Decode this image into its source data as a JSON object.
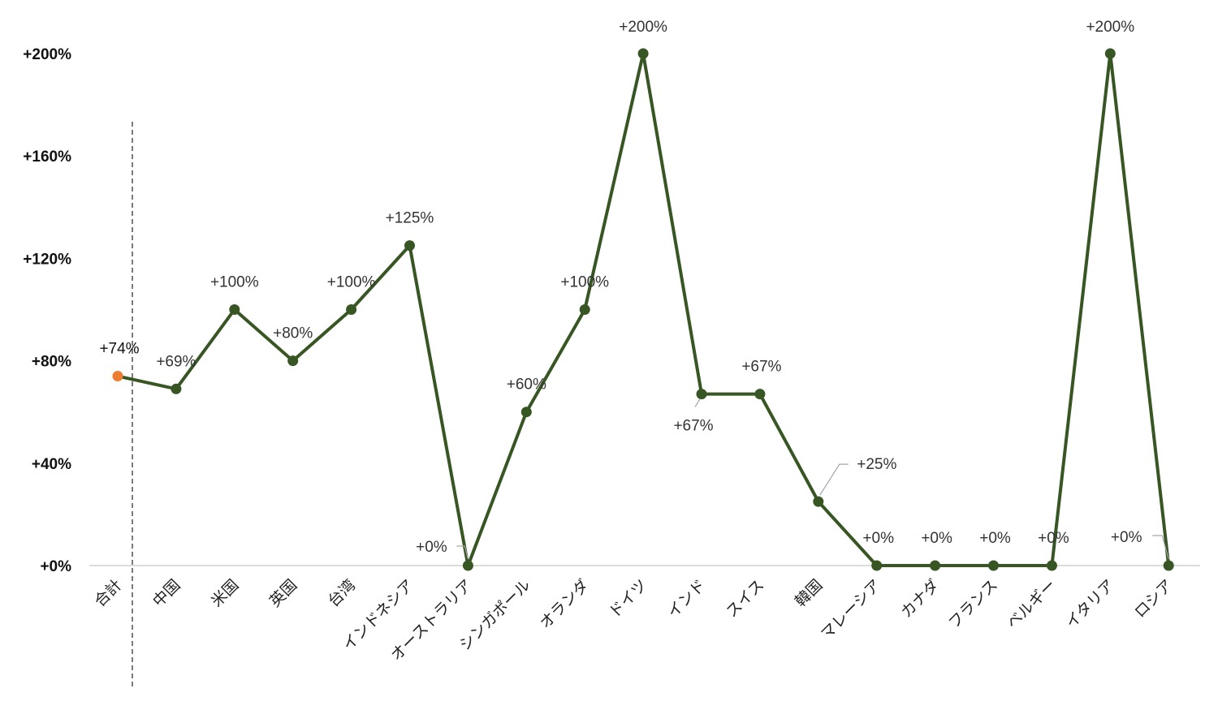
{
  "chart_data": {
    "type": "line",
    "title": "",
    "xlabel": "",
    "ylabel": "",
    "ylim": [
      0,
      200
    ],
    "yticks": [
      0,
      40,
      80,
      120,
      160,
      200
    ],
    "ytick_labels": [
      "+0%",
      "+40%",
      "+80%",
      "+120%",
      "+160%",
      "+200%"
    ],
    "grid": false,
    "legend": "none",
    "categories": [
      "合計",
      "中国",
      "米国",
      "英国",
      "台湾",
      "インドネシア",
      "オーストラリア",
      "シンガポール",
      "オランダ",
      "ドイツ",
      "インド",
      "スイス",
      "韓国",
      "マレーシア",
      "カナダ",
      "フランス",
      "ベルギー",
      "イタリア",
      "ロシア"
    ],
    "series": [
      {
        "values": [
          74,
          69,
          100,
          80,
          100,
          125,
          0,
          60,
          100,
          200,
          67,
          67,
          25,
          0,
          0,
          0,
          0,
          200,
          0
        ],
        "data_labels": [
          "+74%",
          "+69%",
          "+100%",
          "+80%",
          "+100%",
          "+125%",
          "+0%",
          "+60%",
          "+100%",
          "+200%",
          "+67%",
          "+67%",
          "+25%",
          "+0%",
          "+0%",
          "+0%",
          "+0%",
          "+200%",
          "+0%"
        ]
      }
    ],
    "colors": {
      "line": "#375623",
      "total_marker": "#ed7d31",
      "axis": "#d0d0d0",
      "separator": "#333333"
    },
    "separator_after_first": true
  }
}
